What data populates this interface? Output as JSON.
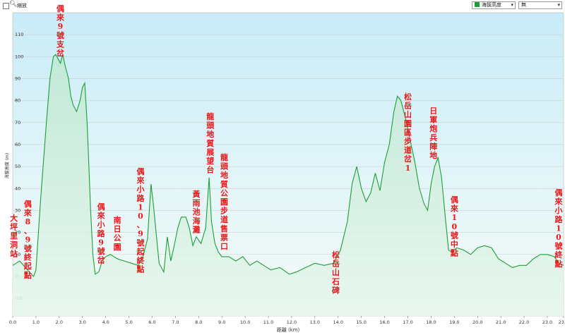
{
  "toolbar": {
    "zoom_label": "縮放",
    "series_select": "海拔高度",
    "extra_select": "無",
    "series_color": "#1f9d3a",
    "icons": [
      "checkbox",
      "magnifier-icon",
      "chevron-down-icon"
    ]
  },
  "chart_data": {
    "type": "area",
    "title": "",
    "xlabel": "距離 (km)",
    "ylabel": "海拔高度 (m)",
    "xlim": [
      0,
      23.7
    ],
    "ylim": [
      -18,
      120
    ],
    "x_ticks": [
      0.0,
      1.0,
      2.0,
      3.0,
      4.0,
      5.0,
      6.0,
      7.0,
      8.0,
      9.0,
      10.0,
      11.0,
      12.0,
      13.0,
      14.0,
      15.0,
      16.0,
      17.0,
      18.0,
      19.0,
      20.0,
      21.0,
      22.0,
      23.0,
      23.7
    ],
    "y_ticks": [
      -10,
      0,
      10,
      20,
      30,
      40,
      50,
      60,
      70,
      80,
      90,
      100,
      110
    ],
    "grid": true,
    "series": [
      {
        "color": "#1f9d3a",
        "x": [
          0.0,
          0.3,
          0.55,
          0.8,
          0.9,
          1.0,
          1.2,
          1.45,
          1.6,
          1.75,
          1.85,
          1.95,
          2.05,
          2.15,
          2.25,
          2.4,
          2.5,
          2.6,
          2.75,
          2.9,
          3.0,
          3.1,
          3.2,
          3.28,
          3.35,
          3.45,
          3.55,
          3.7,
          3.85,
          4.0,
          4.2,
          4.5,
          4.8,
          5.1,
          5.4,
          5.6,
          5.8,
          5.95,
          6.05,
          6.15,
          6.3,
          6.5,
          6.65,
          6.8,
          6.95,
          7.1,
          7.25,
          7.45,
          7.6,
          7.75,
          7.9,
          8.1,
          8.3,
          8.45,
          8.55,
          8.7,
          8.85,
          9.0,
          9.3,
          9.6,
          9.9,
          10.2,
          10.5,
          10.8,
          11.1,
          11.5,
          11.9,
          12.2,
          12.6,
          13.0,
          13.4,
          13.8,
          14.1,
          14.4,
          14.6,
          14.8,
          15.0,
          15.2,
          15.4,
          15.6,
          15.8,
          16.0,
          16.2,
          16.4,
          16.55,
          16.7,
          16.9,
          17.1,
          17.3,
          17.5,
          17.7,
          17.85,
          18.0,
          18.15,
          18.3,
          18.45,
          18.6,
          18.75,
          18.9,
          19.1,
          19.4,
          19.7,
          20.0,
          20.3,
          20.6,
          20.9,
          21.2,
          21.5,
          21.8,
          22.1,
          22.4,
          22.7,
          23.0,
          23.3,
          23.5,
          23.7
        ],
        "y": [
          5,
          7,
          4,
          1,
          0,
          3,
          35,
          70,
          90,
          100,
          101,
          99,
          97,
          101,
          96,
          90,
          82,
          78,
          75,
          80,
          86,
          88,
          70,
          50,
          30,
          10,
          1,
          2,
          7,
          9,
          10,
          8,
          7,
          6,
          5,
          9,
          17,
          42,
          33,
          22,
          6,
          2,
          18,
          7,
          14,
          22,
          27,
          27,
          22,
          14,
          18,
          15,
          22,
          45,
          25,
          15,
          11,
          9,
          9,
          7,
          9,
          5,
          7,
          5,
          3,
          4,
          1,
          2,
          4,
          6,
          5,
          6,
          12,
          25,
          42,
          50,
          40,
          34,
          38,
          47,
          39,
          52,
          60,
          75,
          82,
          80,
          72,
          62,
          52,
          40,
          33,
          30,
          42,
          50,
          54,
          45,
          28,
          12,
          11,
          13,
          12,
          10,
          13,
          14,
          13,
          8,
          6,
          4,
          5,
          5,
          8,
          10,
          10,
          9,
          6,
          5
        ]
      }
    ],
    "annotations": [
      {
        "text": "大坪里洞站",
        "x": 0.05
      },
      {
        "text": "偶來8、9號終起點",
        "x": 0.65
      },
      {
        "text": "偶來9號支岔",
        "x": 2.05
      },
      {
        "text": "偶來小路9號岔",
        "x": 3.8
      },
      {
        "text": "南日公園",
        "x": 4.5
      },
      {
        "text": "偶來小路10、9號起終點",
        "x": 5.5
      },
      {
        "text": "黃雨池海灘",
        "x": 7.9
      },
      {
        "text": "龍頭地質展望台",
        "x": 8.5
      },
      {
        "text": "龍頭地質公園步道售票口",
        "x": 9.1
      },
      {
        "text": "松岳山石碑",
        "x": 13.9
      },
      {
        "text": "松岳山園區步道岔1",
        "x": 17.0
      },
      {
        "text": "日軍炮兵陣地",
        "x": 18.1
      },
      {
        "text": "偶來10號中點",
        "x": 19.0
      },
      {
        "text": "偶來小路10號終點",
        "x": 23.65
      }
    ]
  }
}
